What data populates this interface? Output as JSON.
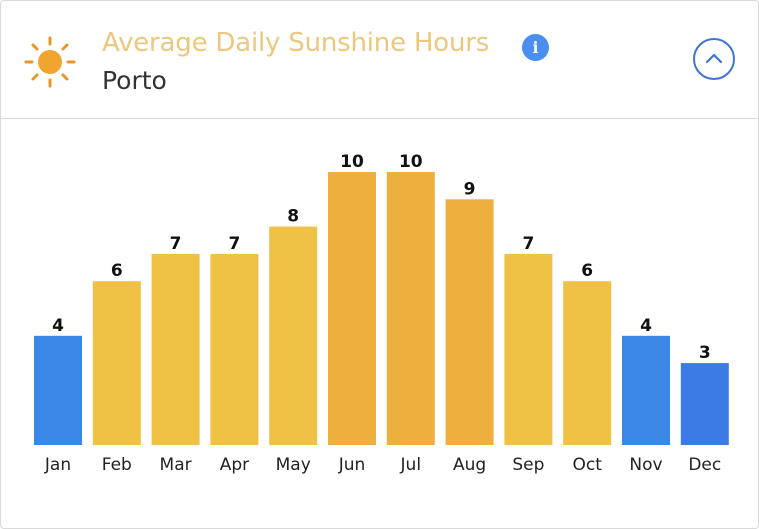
{
  "header": {
    "title": "Average Daily Sunshine Hours",
    "subtitle": "Porto",
    "info_glyph": "i",
    "icons": [
      "sun-icon",
      "info-icon",
      "chevron-up-icon"
    ]
  },
  "colors": {
    "title": "#ebc87e",
    "low": "#3b87e8",
    "mid": "#efc245",
    "high": "#edb03f"
  },
  "chart_data": {
    "type": "bar",
    "title": "Average Daily Sunshine Hours",
    "subtitle": "Porto",
    "xlabel": "",
    "ylabel": "",
    "categories": [
      "Jan",
      "Feb",
      "Mar",
      "Apr",
      "May",
      "Jun",
      "Jul",
      "Aug",
      "Sep",
      "Oct",
      "Nov",
      "Dec"
    ],
    "values": [
      4,
      6,
      7,
      7,
      8,
      10,
      10,
      9,
      7,
      6,
      4,
      3
    ],
    "ylim": [
      0,
      11
    ],
    "grid": false,
    "data_labels": true
  }
}
